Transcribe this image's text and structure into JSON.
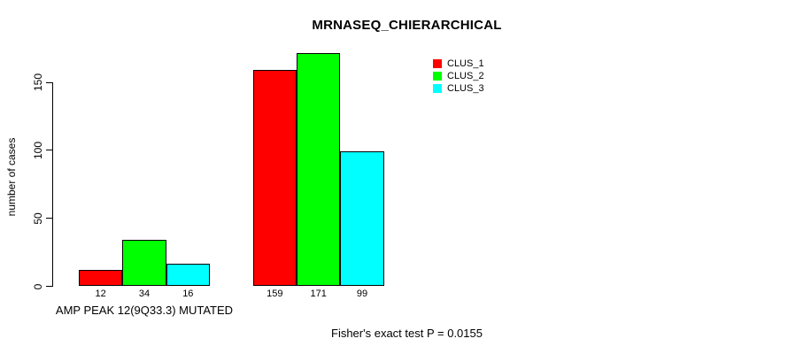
{
  "chart_data": {
    "type": "bar",
    "title": "MRNASEQ_CHIERARCHICAL",
    "xlabel": "",
    "ylabel": "number of cases",
    "ylim": [
      0,
      175
    ],
    "yticks": [
      0,
      50,
      100,
      150
    ],
    "grid": false,
    "legend_position": "top-right",
    "bar_value_labels_shown": true,
    "categories": [
      "AMP PEAK 12(9Q33.3) MUTATED",
      ""
    ],
    "series": [
      {
        "name": "CLUS_1",
        "color": "#ff0000",
        "values": [
          12,
          159
        ]
      },
      {
        "name": "CLUS_2",
        "color": "#00ff00",
        "values": [
          34,
          171
        ]
      },
      {
        "name": "CLUS_3",
        "color": "#00ffff",
        "values": [
          16,
          99
        ]
      }
    ],
    "annotation": "Fisher's exact test P = 0.0155"
  }
}
